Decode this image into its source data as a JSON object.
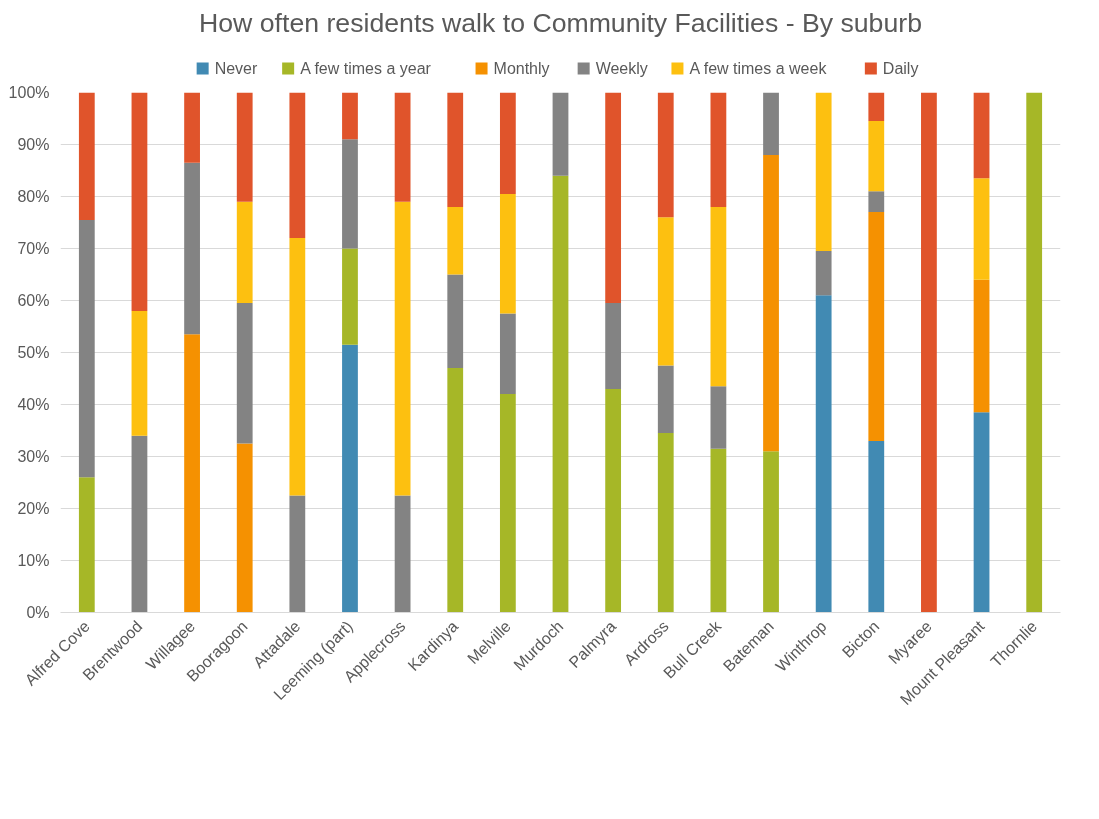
{
  "chart_data": {
    "type": "bar",
    "stacked": true,
    "title": "How often residents walk to Community Facilities - By suburb",
    "categories": [
      "Alfred Cove",
      "Brentwood",
      "Willagee",
      "Booragoon",
      "Attadale",
      "Leeming (part)",
      "Applecross",
      "Kardinya",
      "Melville",
      "Murdoch",
      "Palmyra",
      "Ardross",
      "Bull Creek",
      "Bateman",
      "Winthrop",
      "Bicton",
      "Myaree",
      "Mount Pleasant",
      "Thornlie"
    ],
    "series": [
      {
        "name": "Never",
        "color": "#418ab3",
        "values": [
          0,
          0,
          0,
          0,
          0,
          51.5,
          0,
          0,
          0,
          0,
          0,
          0,
          0,
          0,
          61,
          33,
          0,
          38.5,
          0
        ]
      },
      {
        "name": "A few times a year",
        "color": "#a6b727",
        "values": [
          26,
          0,
          0,
          0,
          0,
          18.5,
          0,
          47,
          42,
          84,
          43,
          34.5,
          31.5,
          31,
          0,
          0,
          0,
          0,
          100
        ]
      },
      {
        "name": "Monthly",
        "color": "#f59101",
        "values": [
          0,
          0,
          53.5,
          32.5,
          0,
          0,
          0,
          0,
          0,
          0,
          0,
          0,
          0,
          57,
          0,
          44,
          0,
          25.5,
          0
        ]
      },
      {
        "name": "Weekly",
        "color": "#838383",
        "values": [
          49.5,
          34,
          33,
          27,
          22.5,
          21,
          22.5,
          18,
          15.5,
          16,
          16.5,
          13,
          12,
          12,
          8.5,
          4,
          0,
          0,
          0
        ]
      },
      {
        "name": "A few times a week",
        "color": "#fdc010",
        "values": [
          0,
          24,
          0,
          19.5,
          49.5,
          0,
          56.5,
          13,
          23,
          0,
          0,
          28.5,
          34.5,
          0,
          30.5,
          13.5,
          0,
          19.5,
          0
        ]
      },
      {
        "name": "Daily",
        "color": "#e0542b",
        "values": [
          24.5,
          42,
          13.5,
          21,
          28,
          9,
          21,
          22,
          19.5,
          0,
          40.5,
          24,
          22,
          0,
          0,
          5.5,
          100,
          16.5,
          0
        ]
      }
    ],
    "ylim": [
      0,
      100
    ],
    "yticks": [
      {
        "value": 0,
        "label": "0%"
      },
      {
        "value": 10,
        "label": "10%"
      },
      {
        "value": 20,
        "label": "20%"
      },
      {
        "value": 30,
        "label": "30%"
      },
      {
        "value": 40,
        "label": "40%"
      },
      {
        "value": 50,
        "label": "50%"
      },
      {
        "value": 60,
        "label": "60%"
      },
      {
        "value": 70,
        "label": "70%"
      },
      {
        "value": 80,
        "label": "80%"
      },
      {
        "value": 90,
        "label": "90%"
      },
      {
        "value": 100,
        "label": "100%"
      }
    ],
    "grid": "y",
    "legend": "top"
  }
}
